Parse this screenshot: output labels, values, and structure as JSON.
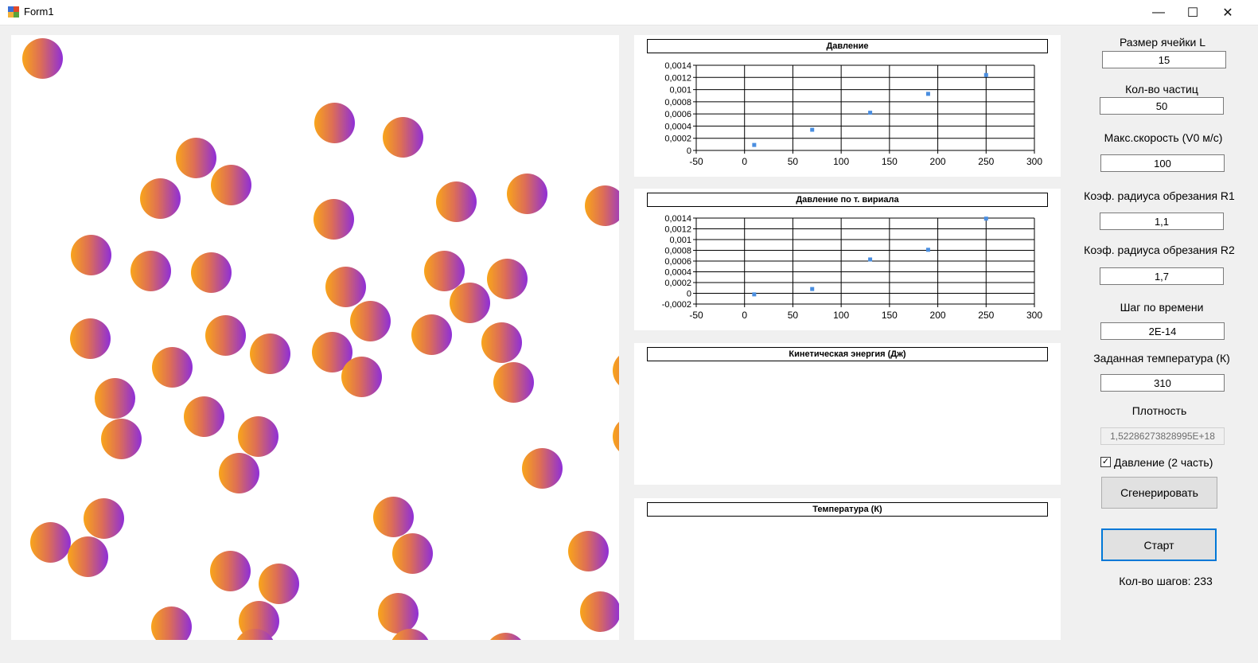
{
  "window": {
    "title": "Form1",
    "minimize_glyph": "—",
    "maximize_glyph": "☐",
    "close_glyph": "✕"
  },
  "sidebar": {
    "cell_size": {
      "label": "Размер ячейки L",
      "value": "15"
    },
    "particle_count": {
      "label": "Кол-во частиц",
      "value": "50"
    },
    "max_speed": {
      "label": "Макс.скорость (V0 м/с)",
      "value": "100"
    },
    "cutoff_r1": {
      "label": "Коэф. радиуса обрезания R1",
      "value": "1,1"
    },
    "cutoff_r2": {
      "label": "Коэф. радиуса обрезания R2",
      "value": "1,7"
    },
    "time_step": {
      "label": "Шаг по времени",
      "value": "2E-14"
    },
    "temperature": {
      "label": "Заданная температура (К)",
      "value": "310"
    },
    "density": {
      "label": "Плотность",
      "value": "1,52286273828995E+18"
    },
    "pressure_checkbox": {
      "label": "Давление (2 часть)",
      "checked": true,
      "check_glyph": "✓"
    },
    "generate_button": "Сгенерировать",
    "start_button": "Старт",
    "steps": "Кол-во шагов: 233"
  },
  "simulation": {
    "particles": [
      [
        53,
        73
      ],
      [
        420,
        154
      ],
      [
        506,
        172
      ],
      [
        246,
        198
      ],
      [
        290,
        232
      ],
      [
        201,
        249
      ],
      [
        573,
        253
      ],
      [
        662,
        243
      ],
      [
        760,
        258
      ],
      [
        419,
        275
      ],
      [
        114,
        320
      ],
      [
        189,
        340
      ],
      [
        265,
        342
      ],
      [
        558,
        340
      ],
      [
        637,
        350
      ],
      [
        434,
        360
      ],
      [
        590,
        380
      ],
      [
        465,
        403
      ],
      [
        113,
        425
      ],
      [
        283,
        421
      ],
      [
        339,
        444
      ],
      [
        417,
        442
      ],
      [
        542,
        420
      ],
      [
        630,
        430
      ],
      [
        216,
        461
      ],
      [
        454,
        473
      ],
      [
        645,
        480
      ],
      [
        795,
        465
      ],
      [
        144,
        500
      ],
      [
        256,
        523
      ],
      [
        324,
        548
      ],
      [
        152,
        551
      ],
      [
        795,
        548
      ],
      [
        300,
        594
      ],
      [
        681,
        588
      ],
      [
        130,
        651
      ],
      [
        494,
        649
      ],
      [
        63,
        681
      ],
      [
        110,
        699
      ],
      [
        518,
        695
      ],
      [
        739,
        692
      ],
      [
        289,
        717
      ],
      [
        350,
        733
      ],
      [
        500,
        770
      ],
      [
        754,
        768
      ],
      [
        215,
        787
      ],
      [
        325,
        780
      ],
      [
        515,
        815
      ],
      [
        635,
        820
      ],
      [
        320,
        815
      ]
    ]
  },
  "charts": {
    "pressure": {
      "chart_data": {
        "type": "scatter",
        "title": "Давление",
        "xlim": [
          -50,
          300
        ],
        "ylim": [
          0,
          0.0014
        ],
        "xticks": [
          "-50",
          "0",
          "50",
          "100",
          "150",
          "200",
          "250",
          "300"
        ],
        "yticks": [
          "0",
          "0,0002",
          "0,0004",
          "0,0006",
          "0,0008",
          "0,001",
          "0,0012",
          "0,0014"
        ],
        "grid": true,
        "x": [
          10,
          70,
          130,
          190,
          250
        ],
        "y": [
          9e-05,
          0.00034,
          0.00062,
          0.00093,
          0.00124
        ],
        "color": "#4a8ee0"
      }
    },
    "virial_pressure": {
      "chart_data": {
        "type": "scatter",
        "title": "Давление по т. вириала",
        "xlim": [
          -50,
          300
        ],
        "ylim": [
          -0.0002,
          0.0014
        ],
        "xticks": [
          "-50",
          "0",
          "50",
          "100",
          "150",
          "200",
          "250",
          "300"
        ],
        "yticks": [
          "-0,0002",
          "0",
          "0,0002",
          "0,0004",
          "0,0006",
          "0,0008",
          "0,001",
          "0,0012",
          "0,0014"
        ],
        "grid": true,
        "x": [
          10,
          70,
          130,
          190,
          250
        ],
        "y": [
          -2e-05,
          8e-05,
          0.00063,
          0.00081,
          0.00139
        ],
        "color": "#4a8ee0"
      }
    },
    "kinetic": {
      "title": "Кинетическая энергия (Дж)"
    },
    "temperature": {
      "title": "Температура (К)"
    }
  }
}
